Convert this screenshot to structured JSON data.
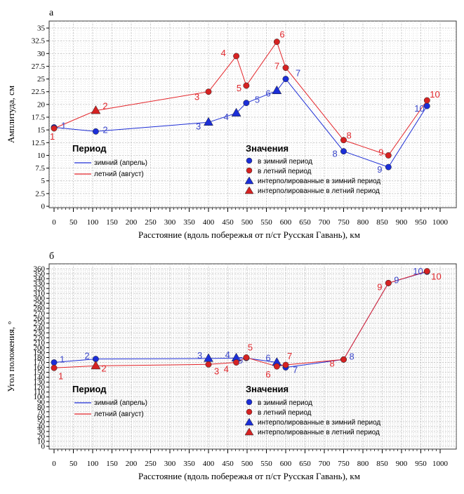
{
  "chart_data": [
    {
      "panel": "а",
      "type": "line",
      "ylabel": "Амплитуда, см",
      "xlabel": "Расстояние (вдоль побережья от п/ст Русская Гавань), км",
      "xlim": [
        0,
        1000
      ],
      "ylim": [
        0,
        35
      ],
      "xticks": [
        0,
        50,
        100,
        150,
        200,
        250,
        300,
        350,
        400,
        450,
        500,
        550,
        600,
        650,
        700,
        750,
        800,
        850,
        900,
        950,
        1000
      ],
      "yticks": [
        0,
        2.5,
        5,
        7.5,
        10,
        12.5,
        15,
        17.5,
        20,
        22.5,
        25,
        27.5,
        30,
        32.5,
        35
      ],
      "series": [
        {
          "name": "зимний (апрель)",
          "color": "#1f2fd6",
          "points": [
            {
              "x": 0,
              "y": 15.5,
              "label": "1",
              "marker": "circle"
            },
            {
              "x": 108,
              "y": 14.7,
              "label": "2",
              "marker": "circle"
            },
            {
              "x": 400,
              "y": 16.5,
              "label": "3",
              "marker": "triangle"
            },
            {
              "x": 472,
              "y": 18.3,
              "label": "4",
              "marker": "triangle"
            },
            {
              "x": 498,
              "y": 20.3,
              "label": "5",
              "marker": "circle"
            },
            {
              "x": 577,
              "y": 22.7,
              "label": "6",
              "marker": "triangle"
            },
            {
              "x": 600,
              "y": 25.0,
              "label": "7",
              "marker": "circle"
            },
            {
              "x": 750,
              "y": 10.8,
              "label": "8",
              "marker": "circle"
            },
            {
              "x": 866,
              "y": 7.7,
              "label": "9",
              "marker": "circle"
            },
            {
              "x": 966,
              "y": 19.7,
              "label": "10",
              "marker": "circle"
            }
          ]
        },
        {
          "name": "летний (август)",
          "color": "#e4252a",
          "points": [
            {
              "x": 0,
              "y": 15.3,
              "label": "1",
              "marker": "circle"
            },
            {
              "x": 108,
              "y": 18.8,
              "label": "2",
              "marker": "triangle"
            },
            {
              "x": 400,
              "y": 22.5,
              "label": "3",
              "marker": "circle"
            },
            {
              "x": 472,
              "y": 29.5,
              "label": "4",
              "marker": "circle"
            },
            {
              "x": 498,
              "y": 23.7,
              "label": "5",
              "marker": "circle"
            },
            {
              "x": 577,
              "y": 32.3,
              "label": "6",
              "marker": "circle"
            },
            {
              "x": 600,
              "y": 27.2,
              "label": "7",
              "marker": "circle"
            },
            {
              "x": 750,
              "y": 13.0,
              "label": "8",
              "marker": "circle"
            },
            {
              "x": 866,
              "y": 10.0,
              "label": "9",
              "marker": "circle"
            },
            {
              "x": 966,
              "y": 20.8,
              "label": "10",
              "marker": "circle"
            }
          ]
        }
      ]
    },
    {
      "panel": "б",
      "type": "line",
      "ylabel": "Угол положения, °",
      "xlabel": "Расстояние (вдоль побережья от п/ст Русская Гавань), км",
      "xlim": [
        0,
        1000
      ],
      "ylim": [
        0,
        360
      ],
      "xticks": [
        0,
        50,
        100,
        150,
        200,
        250,
        300,
        350,
        400,
        450,
        500,
        550,
        600,
        650,
        700,
        750,
        800,
        850,
        900,
        950,
        1000
      ],
      "yticks": [
        0,
        10,
        20,
        30,
        40,
        50,
        60,
        70,
        80,
        90,
        100,
        110,
        120,
        130,
        140,
        150,
        160,
        170,
        180,
        190,
        200,
        210,
        220,
        230,
        240,
        250,
        260,
        270,
        280,
        290,
        300,
        310,
        320,
        330,
        340,
        350,
        360
      ],
      "series": [
        {
          "name": "зимний (апрель)",
          "color": "#1f2fd6",
          "points": [
            {
              "x": 0,
              "y": 170,
              "label": "1",
              "marker": "circle"
            },
            {
              "x": 108,
              "y": 177,
              "label": "2",
              "marker": "circle"
            },
            {
              "x": 400,
              "y": 178,
              "label": "3",
              "marker": "triangle"
            },
            {
              "x": 472,
              "y": 179,
              "label": "4",
              "marker": "triangle"
            },
            {
              "x": 498,
              "y": 179,
              "label": "5",
              "marker": "circle"
            },
            {
              "x": 577,
              "y": 170,
              "label": "6",
              "marker": "triangle"
            },
            {
              "x": 600,
              "y": 160,
              "label": "7",
              "marker": "circle"
            },
            {
              "x": 750,
              "y": 176,
              "label": "8",
              "marker": "circle"
            },
            {
              "x": 866,
              "y": 331,
              "label": "9",
              "marker": "circle"
            },
            {
              "x": 966,
              "y": 354,
              "label": "10",
              "marker": "circle"
            }
          ]
        },
        {
          "name": "летний (август)",
          "color": "#e4252a",
          "points": [
            {
              "x": 0,
              "y": 159,
              "label": "1",
              "marker": "circle"
            },
            {
              "x": 108,
              "y": 163,
              "label": "2",
              "marker": "triangle"
            },
            {
              "x": 400,
              "y": 166,
              "label": "3",
              "marker": "circle"
            },
            {
              "x": 472,
              "y": 170,
              "label": "4",
              "marker": "circle"
            },
            {
              "x": 498,
              "y": 180,
              "label": "5",
              "marker": "circle"
            },
            {
              "x": 577,
              "y": 162,
              "label": "6",
              "marker": "circle"
            },
            {
              "x": 600,
              "y": 165,
              "label": "7",
              "marker": "circle"
            },
            {
              "x": 750,
              "y": 176,
              "label": "8",
              "marker": "circle"
            },
            {
              "x": 866,
              "y": 331,
              "label": "9",
              "marker": "circle"
            },
            {
              "x": 966,
              "y": 355,
              "label": "10",
              "marker": "circle"
            }
          ]
        }
      ]
    }
  ],
  "legend": {
    "period_title": "Период",
    "period_items": [
      {
        "label": "зимний (апрель)",
        "color": "#1f2fd6"
      },
      {
        "label": "летний (август)",
        "color": "#e4252a"
      }
    ],
    "values_title": "Значения",
    "values_items": [
      {
        "label": "в зимний период",
        "marker": "circle",
        "color": "#1f2fd6"
      },
      {
        "label": "в летний период",
        "marker": "circle",
        "color": "#e4252a"
      },
      {
        "label": "интерполированные в зимний период",
        "marker": "triangle",
        "color": "#1f2fd6"
      },
      {
        "label": "интерполированные в летний период",
        "marker": "triangle",
        "color": "#e4252a"
      }
    ]
  }
}
